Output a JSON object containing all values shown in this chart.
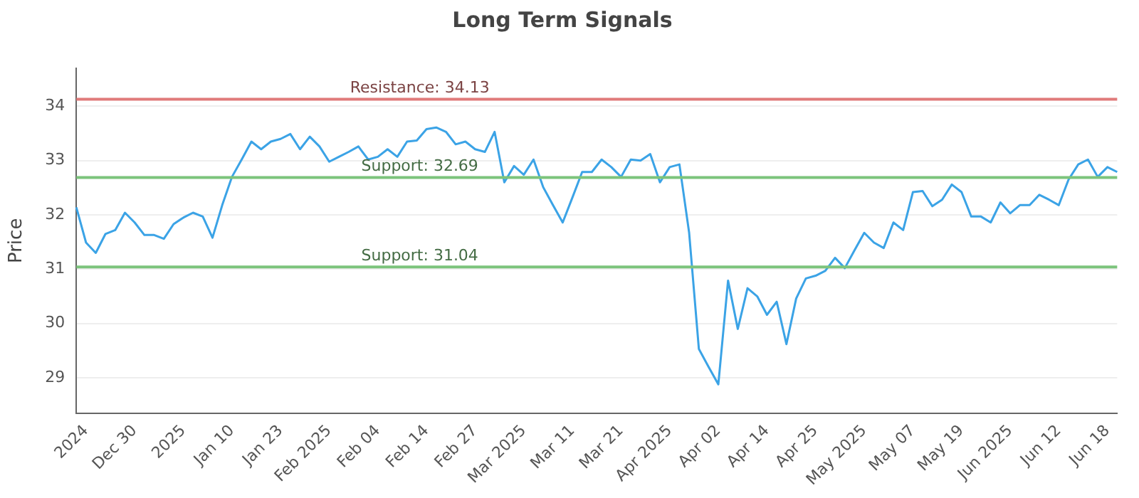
{
  "chart_data": {
    "type": "line",
    "title": "Long Term Signals",
    "ylabel": "Price",
    "categories": [
      null,
      "2024",
      null,
      null,
      null,
      null,
      "Dec 30",
      null,
      null,
      null,
      null,
      "2025",
      null,
      null,
      null,
      null,
      "Jan 10",
      null,
      null,
      null,
      null,
      "Jan 23",
      null,
      null,
      null,
      null,
      "Feb 2025",
      null,
      null,
      null,
      null,
      "Feb 04",
      null,
      null,
      null,
      null,
      "Feb 14",
      null,
      null,
      null,
      null,
      "Feb 27",
      null,
      null,
      null,
      null,
      "Mar 2025",
      null,
      null,
      null,
      null,
      "Mar 11",
      null,
      null,
      null,
      null,
      "Mar 21",
      null,
      null,
      null,
      null,
      "Apr 2025",
      null,
      null,
      null,
      null,
      "Apr 02",
      null,
      null,
      null,
      null,
      "Apr 14",
      null,
      null,
      null,
      null,
      "Apr 25",
      null,
      null,
      null,
      null,
      "May 2025",
      null,
      null,
      null,
      null,
      "May 07",
      null,
      null,
      null,
      null,
      "May 19",
      null,
      null,
      null,
      null,
      "Jun 2025",
      null,
      null,
      null,
      null,
      "Jun 12",
      null,
      null,
      null,
      null,
      "Jun 18",
      null
    ],
    "series": [
      {
        "color": "#3ba3e6",
        "values": [
          32.14,
          31.49,
          31.3,
          31.65,
          31.72,
          32.04,
          31.86,
          31.63,
          31.63,
          31.56,
          31.83,
          31.95,
          32.04,
          31.97,
          31.58,
          32.18,
          32.7,
          33.02,
          33.35,
          33.21,
          33.35,
          33.4,
          33.49,
          33.21,
          33.44,
          33.26,
          32.98,
          33.07,
          33.16,
          33.26,
          33.02,
          33.07,
          33.21,
          33.07,
          33.35,
          33.37,
          33.58,
          33.61,
          33.53,
          33.3,
          33.35,
          33.21,
          33.16,
          33.53,
          32.6,
          32.9,
          32.74,
          33.02,
          32.51,
          32.18,
          31.86,
          32.32,
          32.79,
          32.79,
          33.02,
          32.88,
          32.7,
          33.02,
          33.0,
          33.12,
          32.6,
          32.88,
          32.93,
          31.67,
          29.53,
          29.2,
          28.88,
          30.79,
          29.9,
          30.65,
          30.5,
          30.16,
          30.4,
          29.62,
          30.46,
          30.83,
          30.88,
          30.97,
          31.21,
          31.02,
          31.35,
          31.67,
          31.49,
          31.39,
          31.86,
          31.72,
          32.42,
          32.44,
          32.16,
          32.28,
          32.56,
          32.42,
          31.97,
          31.97,
          31.86,
          32.23,
          32.03,
          32.18,
          32.18,
          32.37,
          32.28,
          32.18,
          32.65,
          32.93,
          33.02,
          32.7,
          32.88,
          32.79
        ]
      }
    ],
    "ylim": [
      28.35,
      34.7
    ],
    "yticks": [
      29,
      30,
      31,
      32,
      33,
      34
    ],
    "grid": "y",
    "legend": false,
    "marker": "none",
    "line_style": "solid",
    "ref_lines": [
      {
        "axis": "y",
        "value": 34.13,
        "label": "Resistance: 34.13",
        "color": "#e07a7a"
      },
      {
        "axis": "y",
        "value": 32.69,
        "label": "Support: 32.69",
        "color": "#7cc47c"
      },
      {
        "axis": "y",
        "value": 31.04,
        "label": "Support: 31.04",
        "color": "#7cc47c"
      }
    ]
  }
}
